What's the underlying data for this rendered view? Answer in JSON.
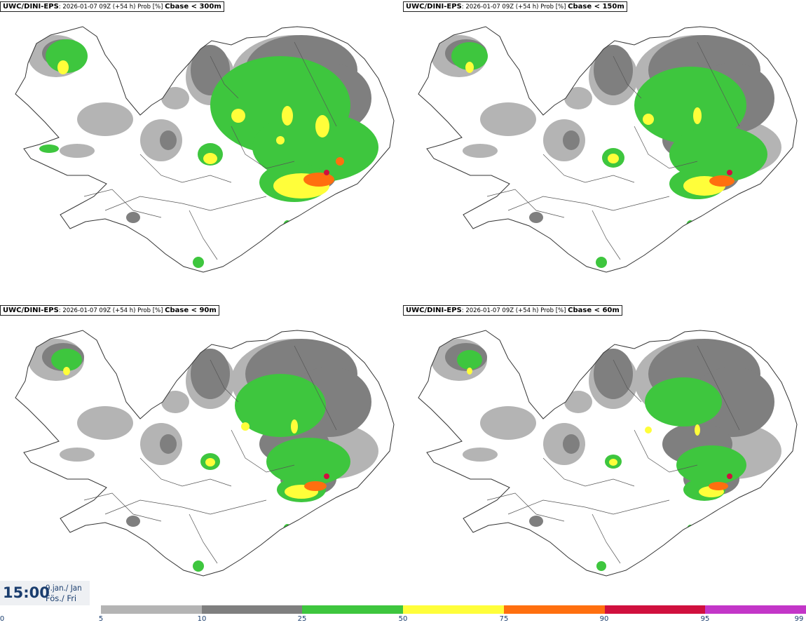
{
  "panels": [
    {
      "model": "UWC/DINI-EPS",
      "meta": ": 2026-01-07 09Z (+54 h) Prob [%] ",
      "condition": "Cbase < 300m",
      "level": 4
    },
    {
      "model": "UWC/DINI-EPS",
      "meta": ": 2026-01-07 09Z (+54 h) Prob [%] ",
      "condition": "Cbase < 150m",
      "level": 3
    },
    {
      "model": "UWC/DINI-EPS",
      "meta": ": 2026-01-07 09Z (+54 h) Prob [%] ",
      "condition": "Cbase < 90m",
      "level": 2
    },
    {
      "model": "UWC/DINI-EPS",
      "meta": ": 2026-01-07 09Z (+54 h) Prob [%] ",
      "condition": "Cbase < 60m",
      "level": 1
    }
  ],
  "valid_time": {
    "time": "15:00",
    "date": "9.jan./ Jan",
    "weekday": "Fös./ Fri"
  },
  "legend": {
    "labels": [
      "0",
      "5",
      "10",
      "25",
      "50",
      "75",
      "90",
      "95",
      "99"
    ],
    "colors": [
      "#ffffff",
      "#b4b4b4",
      "#7f7f7f",
      "#3ec63e",
      "#fffe3a",
      "#ff6f0f",
      "#d0103e",
      "#c336c8",
      "#f2c4f2"
    ],
    "label_color": "#1a3d6e"
  }
}
